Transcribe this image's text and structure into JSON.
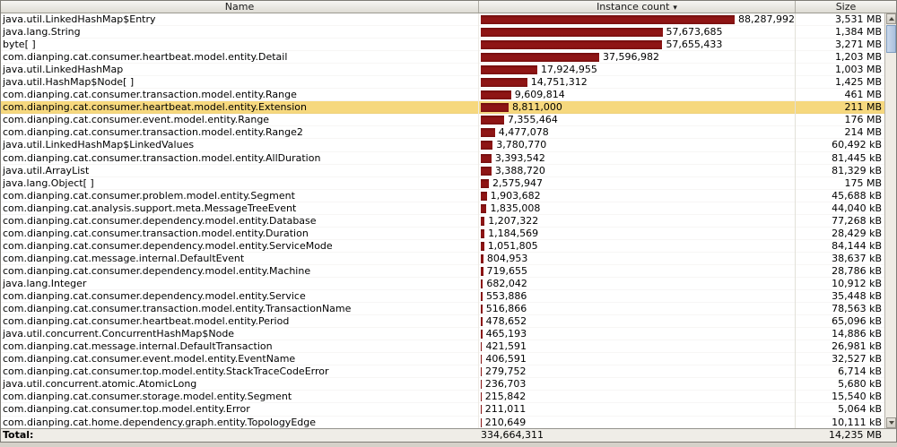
{
  "table": {
    "columns": [
      {
        "label": "Name"
      },
      {
        "label": "Instance count",
        "sort": "descending"
      },
      {
        "label": "Size"
      }
    ],
    "max_count": 88287992,
    "rows": [
      {
        "name": "java.util.LinkedHashMap$Entry",
        "count": "88,287,992",
        "value": 88287992,
        "size": "3,531 MB",
        "highlighted": false
      },
      {
        "name": "java.lang.String",
        "count": "57,673,685",
        "value": 57673685,
        "size": "1,384 MB",
        "highlighted": false
      },
      {
        "name": "byte[ ]",
        "count": "57,655,433",
        "value": 57655433,
        "size": "3,271 MB",
        "highlighted": false
      },
      {
        "name": "com.dianping.cat.consumer.heartbeat.model.entity.Detail",
        "count": "37,596,982",
        "value": 37596982,
        "size": "1,203 MB",
        "highlighted": false
      },
      {
        "name": "java.util.LinkedHashMap",
        "count": "17,924,955",
        "value": 17924955,
        "size": "1,003 MB",
        "highlighted": false
      },
      {
        "name": "java.util.HashMap$Node[ ]",
        "count": "14,751,312",
        "value": 14751312,
        "size": "1,425 MB",
        "highlighted": false
      },
      {
        "name": "com.dianping.cat.consumer.transaction.model.entity.Range",
        "count": "9,609,814",
        "value": 9609814,
        "size": "461 MB",
        "highlighted": false
      },
      {
        "name": "com.dianping.cat.consumer.heartbeat.model.entity.Extension",
        "count": "8,811,000",
        "value": 8811000,
        "size": "211 MB",
        "highlighted": true
      },
      {
        "name": "com.dianping.cat.consumer.event.model.entity.Range",
        "count": "7,355,464",
        "value": 7355464,
        "size": "176 MB",
        "highlighted": false
      },
      {
        "name": "com.dianping.cat.consumer.transaction.model.entity.Range2",
        "count": "4,477,078",
        "value": 4477078,
        "size": "214 MB",
        "highlighted": false
      },
      {
        "name": "java.util.LinkedHashMap$LinkedValues",
        "count": "3,780,770",
        "value": 3780770,
        "size": "60,492 kB",
        "highlighted": false
      },
      {
        "name": "com.dianping.cat.consumer.transaction.model.entity.AllDuration",
        "count": "3,393,542",
        "value": 3393542,
        "size": "81,445 kB",
        "highlighted": false
      },
      {
        "name": "java.util.ArrayList",
        "count": "3,388,720",
        "value": 3388720,
        "size": "81,329 kB",
        "highlighted": false
      },
      {
        "name": "java.lang.Object[ ]",
        "count": "2,575,947",
        "value": 2575947,
        "size": "175 MB",
        "highlighted": false
      },
      {
        "name": "com.dianping.cat.consumer.problem.model.entity.Segment",
        "count": "1,903,682",
        "value": 1903682,
        "size": "45,688 kB",
        "highlighted": false
      },
      {
        "name": "com.dianping.cat.analysis.support.meta.MessageTreeEvent",
        "count": "1,835,008",
        "value": 1835008,
        "size": "44,040 kB",
        "highlighted": false
      },
      {
        "name": "com.dianping.cat.consumer.dependency.model.entity.Database",
        "count": "1,207,322",
        "value": 1207322,
        "size": "77,268 kB",
        "highlighted": false
      },
      {
        "name": "com.dianping.cat.consumer.transaction.model.entity.Duration",
        "count": "1,184,569",
        "value": 1184569,
        "size": "28,429 kB",
        "highlighted": false
      },
      {
        "name": "com.dianping.cat.consumer.dependency.model.entity.ServiceMode",
        "count": "1,051,805",
        "value": 1051805,
        "size": "84,144 kB",
        "highlighted": false
      },
      {
        "name": "com.dianping.cat.message.internal.DefaultEvent",
        "count": "804,953",
        "value": 804953,
        "size": "38,637 kB",
        "highlighted": false
      },
      {
        "name": "com.dianping.cat.consumer.dependency.model.entity.Machine",
        "count": "719,655",
        "value": 719655,
        "size": "28,786 kB",
        "highlighted": false
      },
      {
        "name": "java.lang.Integer",
        "count": "682,042",
        "value": 682042,
        "size": "10,912 kB",
        "highlighted": false
      },
      {
        "name": "com.dianping.cat.consumer.dependency.model.entity.Service",
        "count": "553,886",
        "value": 553886,
        "size": "35,448 kB",
        "highlighted": false
      },
      {
        "name": "com.dianping.cat.consumer.transaction.model.entity.TransactionName",
        "count": "516,866",
        "value": 516866,
        "size": "78,563 kB",
        "highlighted": false
      },
      {
        "name": "com.dianping.cat.consumer.heartbeat.model.entity.Period",
        "count": "478,652",
        "value": 478652,
        "size": "65,096 kB",
        "highlighted": false
      },
      {
        "name": "java.util.concurrent.ConcurrentHashMap$Node",
        "count": "465,193",
        "value": 465193,
        "size": "14,886 kB",
        "highlighted": false
      },
      {
        "name": "com.dianping.cat.message.internal.DefaultTransaction",
        "count": "421,591",
        "value": 421591,
        "size": "26,981 kB",
        "highlighted": false
      },
      {
        "name": "com.dianping.cat.consumer.event.model.entity.EventName",
        "count": "406,591",
        "value": 406591,
        "size": "32,527 kB",
        "highlighted": false
      },
      {
        "name": "com.dianping.cat.consumer.top.model.entity.StackTraceCodeError",
        "count": "279,752",
        "value": 279752,
        "size": "6,714 kB",
        "highlighted": false
      },
      {
        "name": "java.util.concurrent.atomic.AtomicLong",
        "count": "236,703",
        "value": 236703,
        "size": "5,680 kB",
        "highlighted": false
      },
      {
        "name": "com.dianping.cat.consumer.storage.model.entity.Segment",
        "count": "215,842",
        "value": 215842,
        "size": "15,540 kB",
        "highlighted": false
      },
      {
        "name": "com.dianping.cat.consumer.top.model.entity.Error",
        "count": "211,011",
        "value": 211011,
        "size": "5,064 kB",
        "highlighted": false
      },
      {
        "name": "com.dianping.cat.home.dependency.graph.entity.TopologyEdge",
        "count": "210,649",
        "value": 210649,
        "size": "10,111 kB",
        "highlighted": false
      }
    ],
    "total": {
      "label": "Total:",
      "count": "334,664,311",
      "size": "14,235 MB"
    }
  },
  "colors": {
    "bar": "#8e1515",
    "highlight_row": "#f6d87e",
    "header_bg": "#e8e6de",
    "scrollbar_thumb": "#b4c8e0"
  },
  "icons": {
    "sort_descending": "▾"
  }
}
